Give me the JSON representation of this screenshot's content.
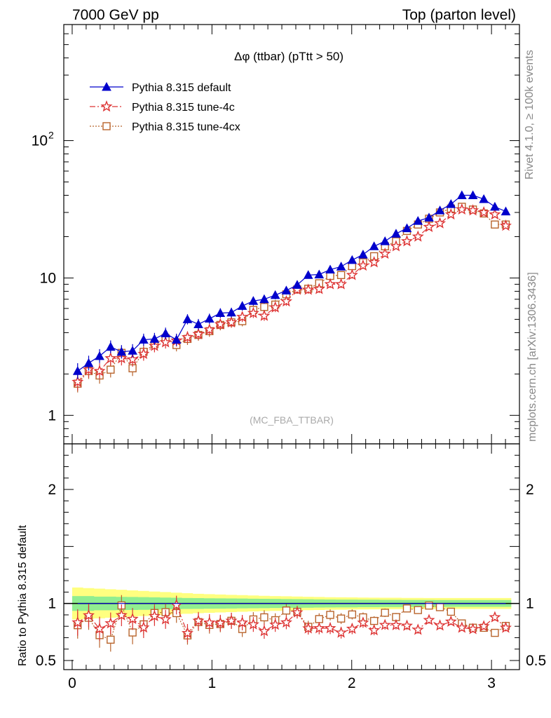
{
  "header": {
    "left": "7000 GeV pp",
    "right": "Top (parton level)"
  },
  "side_labels": {
    "rivet": "Rivet 4.1.0, ≥ 100k events",
    "mcplots": "mcplots.cern.ch [arXiv:1306.3436]"
  },
  "chart_data": {
    "type": "line",
    "title": "Δφ (ttbar) (pTtt > 50)",
    "watermark": "(MC_FBA_TTBAR)",
    "xlabel": "",
    "ylabel_main": "",
    "ylabel_ratio": "Ratio to Pythia 8.315 default",
    "xlim": [
      -0.06,
      3.2
    ],
    "ylim_main": [
      0.62,
      700
    ],
    "ylim_ratio": [
      0.42,
      2.4
    ],
    "yscale": "log",
    "x_ticks": [
      "0",
      "1",
      "2",
      "3"
    ],
    "x_tick_values": [
      0,
      1,
      2,
      3
    ],
    "y_ticks_main": [
      {
        "value": 1,
        "label": "1"
      },
      {
        "value": 10,
        "label": "10"
      },
      {
        "value": 100,
        "label": "10",
        "sup": "2"
      }
    ],
    "y_ticks_ratio": [
      {
        "value": 0.5,
        "label": "0.5"
      },
      {
        "value": 1,
        "label": "1"
      },
      {
        "value": 2,
        "label": "2"
      }
    ],
    "x": [
      0.039,
      0.118,
      0.196,
      0.275,
      0.353,
      0.432,
      0.511,
      0.589,
      0.668,
      0.746,
      0.825,
      0.903,
      0.982,
      1.06,
      1.139,
      1.217,
      1.296,
      1.374,
      1.453,
      1.532,
      1.61,
      1.689,
      1.767,
      1.846,
      1.924,
      2.003,
      2.081,
      2.16,
      2.238,
      2.317,
      2.395,
      2.474,
      2.553,
      2.631,
      2.71,
      2.788,
      2.867,
      2.945,
      3.024,
      3.102
    ],
    "series": [
      {
        "name": "Pythia 8.315 default",
        "color": "#0000cc",
        "marker": "triangle",
        "line": "solid",
        "values": [
          2.1,
          2.4,
          2.7,
          3.15,
          2.9,
          2.95,
          3.55,
          3.6,
          3.95,
          3.55,
          5.0,
          4.6,
          5.05,
          5.55,
          5.6,
          6.25,
          6.8,
          7.0,
          7.5,
          8.1,
          8.9,
          10.5,
          10.6,
          11.5,
          12.1,
          13.5,
          14.8,
          17.0,
          18.5,
          21.0,
          23.0,
          26.0,
          27.5,
          31.0,
          34.5,
          40.0,
          40.0,
          37.5,
          33.0,
          30.5
        ]
      },
      {
        "name": "Pythia 8.315 tune-4c",
        "color": "#dd3333",
        "marker": "star",
        "line": "dashdot",
        "values": [
          1.75,
          2.15,
          2.1,
          2.6,
          2.6,
          2.55,
          2.8,
          3.2,
          3.4,
          3.5,
          3.7,
          3.9,
          4.2,
          4.6,
          4.75,
          5.2,
          5.55,
          5.3,
          6.1,
          6.75,
          8.2,
          8.2,
          8.3,
          9.0,
          9.0,
          10.5,
          12.3,
          13.0,
          15.0,
          17.0,
          18.5,
          20.0,
          23.5,
          25.0,
          29.0,
          31.5,
          31.0,
          30.0,
          29.0,
          24.0
        ]
      },
      {
        "name": "Pythia 8.315 tune-4cx",
        "color": "#b8642c",
        "marker": "square",
        "line": "dotted",
        "values": [
          1.7,
          2.1,
          1.95,
          2.15,
          2.85,
          2.2,
          2.9,
          3.3,
          3.65,
          3.25,
          3.6,
          3.85,
          4.1,
          4.55,
          4.75,
          4.85,
          5.85,
          6.15,
          6.4,
          7.6,
          8.25,
          8.35,
          9.15,
          10.35,
          10.5,
          12.2,
          13.0,
          14.4,
          17.0,
          18.5,
          22.0,
          24.5,
          27.0,
          30.0,
          32.0,
          33.0,
          31.5,
          29.5,
          24.5,
          24.5
        ]
      }
    ],
    "uncertainty_band": {
      "inner_color": "#90ee90",
      "outer_color": "#ffff80",
      "inner_half_width": [
        0.065,
        0.065,
        0.06,
        0.06,
        0.058,
        0.057,
        0.056,
        0.054,
        0.052,
        0.05,
        0.048,
        0.047,
        0.046,
        0.045,
        0.044,
        0.043,
        0.042,
        0.041,
        0.04,
        0.039,
        0.038,
        0.037,
        0.036,
        0.035,
        0.034,
        0.034,
        0.033,
        0.033,
        0.032,
        0.032,
        0.031,
        0.031,
        0.031,
        0.03,
        0.03,
        0.03,
        0.03,
        0.03,
        0.03,
        0.03
      ],
      "outer_half_width": [
        0.14,
        0.135,
        0.13,
        0.125,
        0.12,
        0.115,
        0.11,
        0.105,
        0.1,
        0.095,
        0.09,
        0.085,
        0.082,
        0.079,
        0.076,
        0.073,
        0.07,
        0.067,
        0.065,
        0.063,
        0.061,
        0.059,
        0.057,
        0.055,
        0.054,
        0.053,
        0.052,
        0.051,
        0.05,
        0.05,
        0.049,
        0.049,
        0.048,
        0.048,
        0.048,
        0.048,
        0.048,
        0.048,
        0.048,
        0.048
      ]
    }
  }
}
